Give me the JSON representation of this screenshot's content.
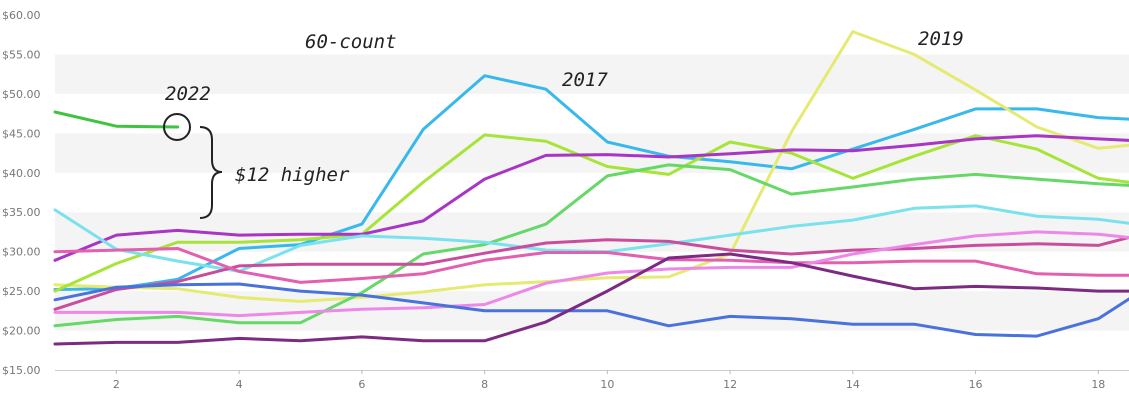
{
  "chart_data": {
    "type": "line",
    "title": "",
    "xlabel": "",
    "ylabel": "",
    "xlim": [
      1,
      18.5
    ],
    "ylim": [
      15,
      60
    ],
    "x_ticks": [
      "2",
      "4",
      "6",
      "8",
      "10",
      "12",
      "14",
      "16",
      "18"
    ],
    "y_ticks": [
      "$15.00",
      "$20.00",
      "$25.00",
      "$30.00",
      "$35.00",
      "$40.00",
      "$45.00",
      "$50.00",
      "$55.00",
      "$60.00"
    ],
    "grid": "horizontal bands",
    "annotations": {
      "count_label": "60-count",
      "year_2022": "2022",
      "year_2017": "2017",
      "year_2019": "2019",
      "brace_note": "$12 higher"
    },
    "series": [
      {
        "color": "#3fc43f",
        "x": [
          1,
          2,
          3
        ],
        "values": [
          47.7,
          45.9,
          45.8
        ]
      },
      {
        "color": "#38b8ec",
        "x": [
          1,
          2,
          3,
          4,
          5,
          6,
          7,
          8,
          9,
          10,
          11,
          12,
          13,
          14,
          15,
          16,
          17,
          18,
          18.5
        ],
        "values": [
          25.2,
          25.3,
          26.5,
          30.4,
          30.9,
          33.5,
          45.5,
          52.3,
          50.6,
          43.9,
          42.1,
          41.4,
          40.5,
          43.0,
          45.5,
          48.1,
          48.1,
          47.0,
          46.8
        ]
      },
      {
        "color": "#e4ea72",
        "x": [
          1,
          2,
          3,
          4,
          5,
          6,
          7,
          8,
          9,
          10,
          11,
          12,
          13,
          14,
          15,
          16,
          17,
          18,
          18.5
        ],
        "values": [
          25.8,
          25.5,
          25.3,
          24.2,
          23.7,
          24.2,
          24.9,
          25.8,
          26.2,
          26.7,
          26.8,
          29.7,
          45.2,
          57.9,
          55.0,
          50.5,
          45.8,
          43.1,
          43.5
        ]
      },
      {
        "color": "#a7e43a",
        "x": [
          1,
          2,
          3,
          4,
          5,
          6,
          7,
          8,
          9,
          10,
          11,
          12,
          13,
          14,
          15,
          16,
          17,
          18,
          18.5
        ],
        "values": [
          25.0,
          28.5,
          31.2,
          31.2,
          31.5,
          32.2,
          38.8,
          44.8,
          44.0,
          40.8,
          39.8,
          43.9,
          42.5,
          39.3,
          42.1,
          44.7,
          43.0,
          39.3,
          38.8
        ]
      },
      {
        "color": "#a935c5",
        "x": [
          1,
          2,
          3,
          4,
          5,
          6,
          7,
          8,
          9,
          10,
          11,
          12,
          13,
          14,
          15,
          16,
          17,
          18,
          18.5
        ],
        "values": [
          28.9,
          32.1,
          32.7,
          32.1,
          32.2,
          32.2,
          33.9,
          39.2,
          42.2,
          42.3,
          42.0,
          42.4,
          42.9,
          42.8,
          43.5,
          44.3,
          44.7,
          44.3,
          44.1
        ]
      },
      {
        "color": "#66d868",
        "x": [
          1,
          2,
          3,
          4,
          5,
          6,
          7,
          8,
          9,
          10,
          11,
          12,
          13,
          14,
          15,
          16,
          17,
          18,
          18.5
        ],
        "values": [
          20.6,
          21.4,
          21.8,
          21.0,
          21.0,
          24.8,
          29.7,
          30.9,
          33.5,
          39.6,
          41.0,
          40.4,
          37.3,
          38.2,
          39.2,
          39.8,
          39.2,
          38.6,
          38.4
        ]
      },
      {
        "color": "#7ae2ec",
        "x": [
          1,
          2,
          3,
          4,
          5,
          6,
          7,
          8,
          9,
          10,
          11,
          12,
          13,
          14,
          15,
          16,
          17,
          18,
          18.5
        ],
        "values": [
          35.3,
          30.3,
          28.8,
          27.5,
          30.8,
          32.0,
          31.7,
          31.2,
          30.2,
          30.0,
          31.0,
          32.1,
          33.2,
          34.0,
          35.5,
          35.8,
          34.5,
          34.1,
          33.6
        ]
      },
      {
        "color": "#c94d9c",
        "x": [
          1,
          2,
          3,
          4,
          5,
          6,
          7,
          8,
          9,
          10,
          11,
          12,
          13,
          14,
          15,
          16,
          17,
          18,
          18.5
        ],
        "values": [
          22.7,
          25.2,
          26.2,
          28.2,
          28.4,
          28.4,
          28.4,
          29.8,
          31.1,
          31.5,
          31.3,
          30.2,
          29.7,
          30.2,
          30.4,
          30.8,
          31.0,
          30.8,
          31.8
        ]
      },
      {
        "color": "#e35fb0",
        "x": [
          1,
          2,
          3,
          4,
          5,
          6,
          7,
          8,
          9,
          10,
          11,
          12,
          13,
          14,
          15,
          16,
          17,
          18,
          18.5
        ],
        "values": [
          30.0,
          30.2,
          30.4,
          27.5,
          26.1,
          26.6,
          27.2,
          28.9,
          29.9,
          29.9,
          29.0,
          28.9,
          28.6,
          28.6,
          28.8,
          28.8,
          27.2,
          27.0,
          27.0
        ]
      },
      {
        "color": "#ee88e8",
        "x": [
          1,
          2,
          3,
          4,
          5,
          6,
          7,
          8,
          9,
          10,
          11,
          12,
          13,
          14,
          15,
          16,
          17,
          18,
          18.5
        ],
        "values": [
          22.3,
          22.3,
          22.3,
          21.9,
          22.3,
          22.7,
          22.9,
          23.3,
          26.0,
          27.3,
          27.8,
          28.0,
          28.0,
          29.7,
          30.9,
          32.0,
          32.5,
          32.2,
          31.8
        ]
      },
      {
        "color": "#4a72dd",
        "x": [
          1,
          2,
          3,
          4,
          5,
          6,
          7,
          8,
          9,
          10,
          11,
          12,
          13,
          14,
          15,
          16,
          17,
          18,
          18.5
        ],
        "values": [
          23.9,
          25.5,
          25.8,
          25.9,
          25.0,
          24.5,
          23.5,
          22.5,
          22.5,
          22.5,
          20.6,
          21.8,
          21.5,
          20.8,
          20.8,
          19.5,
          19.3,
          21.5,
          24.0
        ]
      },
      {
        "color": "#7d2a82",
        "x": [
          1,
          2,
          3,
          4,
          5,
          6,
          7,
          8,
          9,
          10,
          11,
          12,
          13,
          14,
          15,
          16,
          17,
          18,
          18.5
        ],
        "values": [
          18.3,
          18.5,
          18.5,
          19.0,
          18.7,
          19.2,
          18.7,
          18.7,
          21.1,
          25.0,
          29.2,
          29.7,
          28.6,
          26.9,
          25.3,
          25.6,
          25.4,
          25.0,
          25.0
        ]
      }
    ]
  }
}
